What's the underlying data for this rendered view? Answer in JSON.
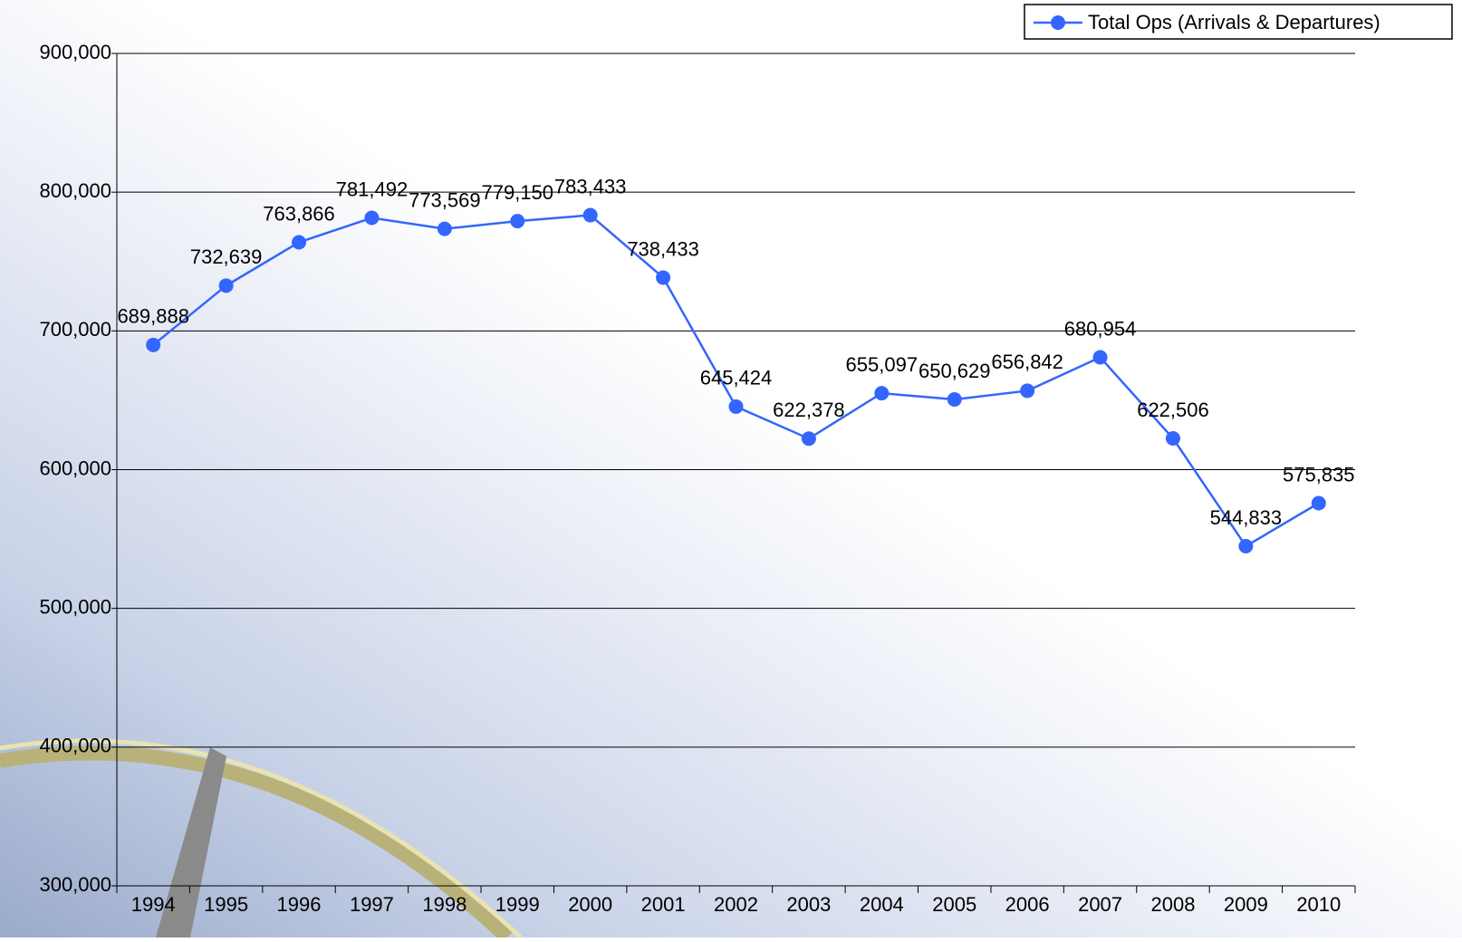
{
  "chart_data": {
    "type": "line",
    "categories": [
      "1994",
      "1995",
      "1996",
      "1997",
      "1998",
      "1999",
      "2000",
      "2001",
      "2002",
      "2003",
      "2004",
      "2005",
      "2006",
      "2007",
      "2008",
      "2009",
      "2010"
    ],
    "series": [
      {
        "name": "Total Ops (Arrivals & Departures)",
        "color": "#3366ff",
        "values": [
          689888,
          732639,
          763866,
          781492,
          773569,
          779150,
          783433,
          738433,
          645424,
          622378,
          655097,
          650629,
          656842,
          680954,
          622506,
          544833,
          575835
        ],
        "value_labels": [
          "689,888",
          "732,639",
          "763,866",
          "781,492",
          "773,569",
          "779,150",
          "783,433",
          "738,433",
          "645,424",
          "622,378",
          "655,097",
          "650,629",
          "656,842",
          "680,954",
          "622,506",
          "544,833",
          "575,835"
        ]
      }
    ],
    "ylim": [
      300000,
      900000
    ],
    "yticks": [
      {
        "value": 300000,
        "label": "300,000"
      },
      {
        "value": 400000,
        "label": "400,000"
      },
      {
        "value": 500000,
        "label": "500,000"
      },
      {
        "value": 600000,
        "label": "600,000"
      },
      {
        "value": 700000,
        "label": "700,000"
      },
      {
        "value": 800000,
        "label": "800,000"
      },
      {
        "value": 900000,
        "label": "900,000"
      }
    ],
    "grid": true,
    "legend": "top-right"
  }
}
